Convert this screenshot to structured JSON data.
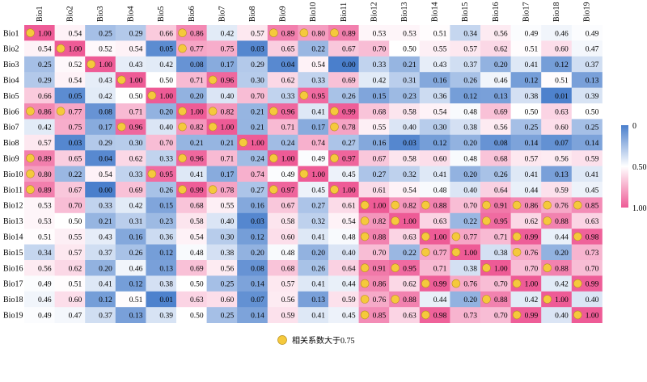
{
  "chart_data": {
    "type": "heatmap",
    "variables": [
      "Bio1",
      "Bio2",
      "Bio3",
      "Bio4",
      "Bio5",
      "Bio6",
      "Bio7",
      "Bio8",
      "Bio9",
      "Bio10",
      "Bio11",
      "Bio12",
      "Bio13",
      "Bio14",
      "Bio15",
      "Bio16",
      "Bio17",
      "Bio18",
      "Bio19"
    ],
    "matrix": [
      [
        1.0,
        0.54,
        0.25,
        0.29,
        0.66,
        0.86,
        0.42,
        0.57,
        0.89,
        0.8,
        0.89,
        0.53,
        0.53,
        0.51,
        0.34,
        0.56,
        0.49,
        0.46,
        0.49
      ],
      [
        0.54,
        1.0,
        0.52,
        0.54,
        0.05,
        0.77,
        0.75,
        0.03,
        0.65,
        0.22,
        0.67,
        0.7,
        0.5,
        0.55,
        0.57,
        0.62,
        0.51,
        0.6,
        0.47
      ],
      [
        0.25,
        0.52,
        1.0,
        0.43,
        0.42,
        0.08,
        0.17,
        0.29,
        0.04,
        0.54,
        0.0,
        0.33,
        0.21,
        0.43,
        0.37,
        0.2,
        0.41,
        0.12,
        0.37
      ],
      [
        0.29,
        0.54,
        0.43,
        1.0,
        0.5,
        0.71,
        0.96,
        0.3,
        0.62,
        0.33,
        0.69,
        0.42,
        0.31,
        0.16,
        0.26,
        0.46,
        0.12,
        0.51,
        0.13
      ],
      [
        0.66,
        0.05,
        0.42,
        0.5,
        1.0,
        0.2,
        0.4,
        0.7,
        0.33,
        0.95,
        0.26,
        0.15,
        0.23,
        0.36,
        0.12,
        0.13,
        0.38,
        0.01,
        0.39
      ],
      [
        0.86,
        0.77,
        0.08,
        0.71,
        0.2,
        1.0,
        0.82,
        0.21,
        0.96,
        0.41,
        0.99,
        0.68,
        0.58,
        0.54,
        0.48,
        0.69,
        0.5,
        0.63,
        0.5
      ],
      [
        0.42,
        0.75,
        0.17,
        0.96,
        0.4,
        0.82,
        1.0,
        0.21,
        0.71,
        0.17,
        0.78,
        0.55,
        0.4,
        0.3,
        0.38,
        0.56,
        0.25,
        0.6,
        0.25
      ],
      [
        0.57,
        0.03,
        0.29,
        0.3,
        0.7,
        0.21,
        0.21,
        1.0,
        0.24,
        0.74,
        0.27,
        0.16,
        0.03,
        0.12,
        0.2,
        0.08,
        0.14,
        0.07,
        0.14
      ],
      [
        0.89,
        0.65,
        0.04,
        0.62,
        0.33,
        0.96,
        0.71,
        0.24,
        1.0,
        0.49,
        0.97,
        0.67,
        0.58,
        0.6,
        0.48,
        0.68,
        0.57,
        0.56,
        0.59
      ],
      [
        0.8,
        0.22,
        0.54,
        0.33,
        0.95,
        0.41,
        0.17,
        0.74,
        0.49,
        1.0,
        0.45,
        0.27,
        0.32,
        0.41,
        0.2,
        0.26,
        0.41,
        0.13,
        0.41
      ],
      [
        0.89,
        0.67,
        0.0,
        0.69,
        0.26,
        0.99,
        0.78,
        0.27,
        0.97,
        0.45,
        1.0,
        0.61,
        0.54,
        0.48,
        0.4,
        0.64,
        0.44,
        0.59,
        0.45
      ],
      [
        0.53,
        0.7,
        0.33,
        0.42,
        0.15,
        0.68,
        0.55,
        0.16,
        0.67,
        0.27,
        0.61,
        1.0,
        0.82,
        0.88,
        0.7,
        0.91,
        0.86,
        0.76,
        0.85
      ],
      [
        0.53,
        0.5,
        0.21,
        0.31,
        0.23,
        0.58,
        0.4,
        0.03,
        0.58,
        0.32,
        0.54,
        0.82,
        1.0,
        0.63,
        0.22,
        0.95,
        0.62,
        0.88,
        0.63
      ],
      [
        0.51,
        0.55,
        0.43,
        0.16,
        0.36,
        0.54,
        0.3,
        0.12,
        0.6,
        0.41,
        0.48,
        0.88,
        0.63,
        1.0,
        0.77,
        0.71,
        0.99,
        0.44,
        0.98
      ],
      [
        0.34,
        0.57,
        0.37,
        0.26,
        0.12,
        0.48,
        0.38,
        0.2,
        0.48,
        0.2,
        0.4,
        0.7,
        0.22,
        0.77,
        1.0,
        0.38,
        0.76,
        0.2,
        0.73
      ],
      [
        0.56,
        0.62,
        0.2,
        0.46,
        0.13,
        0.69,
        0.56,
        0.08,
        0.68,
        0.26,
        0.64,
        0.91,
        0.95,
        0.71,
        0.38,
        1.0,
        0.7,
        0.88,
        0.7
      ],
      [
        0.49,
        0.51,
        0.41,
        0.12,
        0.38,
        0.5,
        0.25,
        0.14,
        0.57,
        0.41,
        0.44,
        0.86,
        0.62,
        0.99,
        0.76,
        0.7,
        1.0,
        0.42,
        0.99
      ],
      [
        0.46,
        0.6,
        0.12,
        0.51,
        0.01,
        0.63,
        0.6,
        0.07,
        0.56,
        0.13,
        0.59,
        0.76,
        0.88,
        0.44,
        0.2,
        0.88,
        0.42,
        1.0,
        0.4
      ],
      [
        0.49,
        0.47,
        0.37,
        0.13,
        0.39,
        0.5,
        0.25,
        0.14,
        0.59,
        0.41,
        0.45,
        0.85,
        0.63,
        0.98,
        0.73,
        0.7,
        0.99,
        0.4,
        1.0
      ]
    ],
    "marker_threshold": 0.75,
    "marker_rule": "circle marker when correlation > 0.75 (diagonal included)",
    "color_scale": {
      "min": 0,
      "mid": 0.5,
      "max": 1,
      "low_color": "#4a7fcc",
      "mid_color": "#ffffff",
      "high_color": "#ee5b96"
    },
    "colorbar_ticks": [
      "0",
      "0.50",
      "1.00"
    ],
    "legend_text": "相关系数大于0.75",
    "marker_color": "#f5c93c",
    "marker_edge_color": "#b8901e"
  }
}
